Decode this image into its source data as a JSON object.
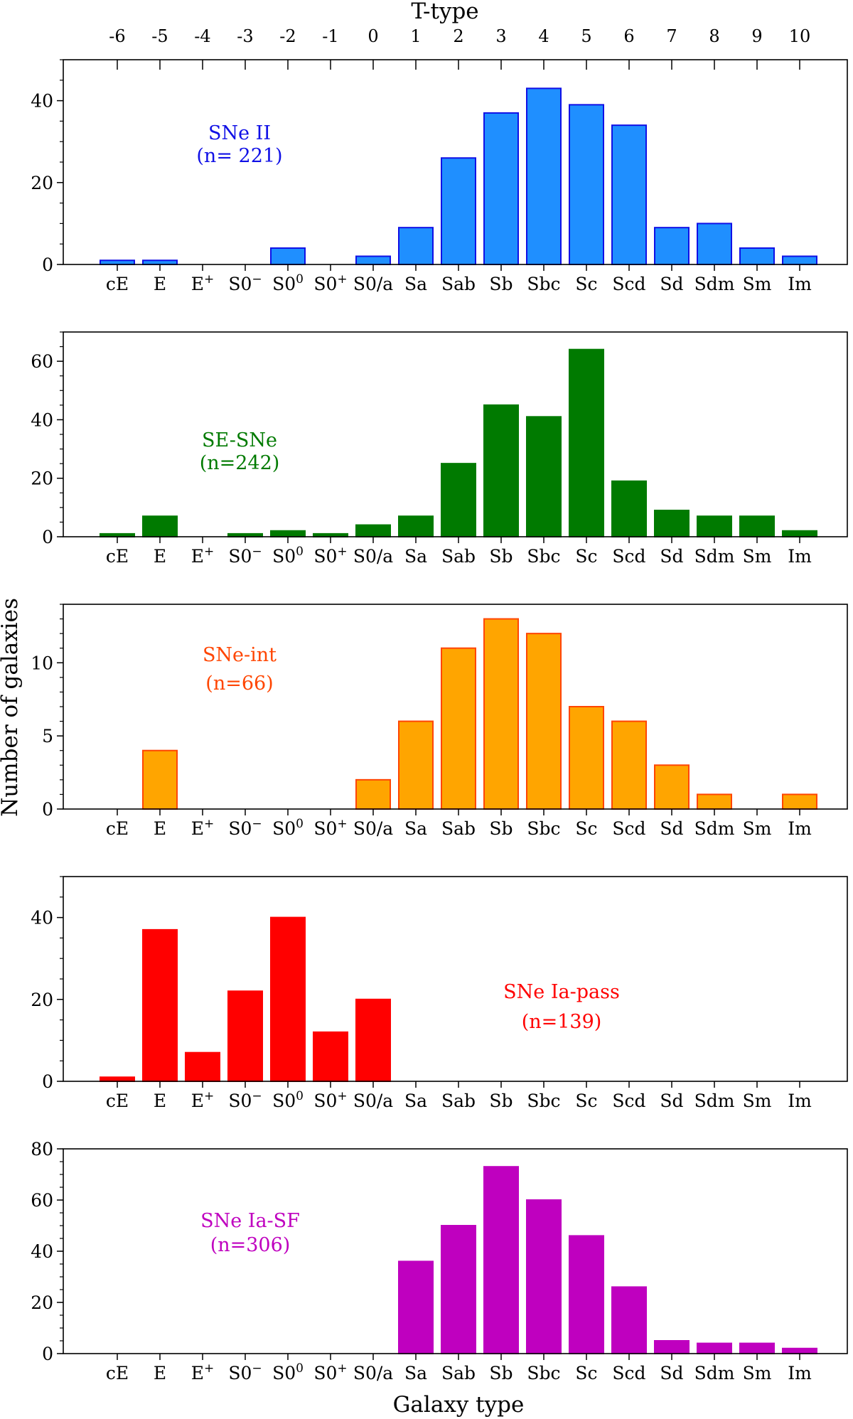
{
  "chart_data": {
    "type": "bar",
    "top_axis": {
      "label": "T-type",
      "ticks": [
        "-6",
        "-5",
        "-4",
        "-3",
        "-2",
        "-1",
        "0",
        "1",
        "2",
        "3",
        "4",
        "5",
        "6",
        "7",
        "8",
        "9",
        "10"
      ]
    },
    "categories": [
      {
        "name": "cE"
      },
      {
        "name": "E"
      },
      {
        "name": "E",
        "sup": "+"
      },
      {
        "name": "S0",
        "sup": "−"
      },
      {
        "name": "S0",
        "sup": "0"
      },
      {
        "name": "S0",
        "sup": "+"
      },
      {
        "name": "S0/a"
      },
      {
        "name": "Sa"
      },
      {
        "name": "Sab"
      },
      {
        "name": "Sb"
      },
      {
        "name": "Sbc"
      },
      {
        "name": "Sc"
      },
      {
        "name": "Scd"
      },
      {
        "name": "Sd"
      },
      {
        "name": "Sdm"
      },
      {
        "name": "Sm"
      },
      {
        "name": "Im"
      }
    ],
    "xlabel": "Galaxy type",
    "ylabel": "Number of galaxies",
    "panels": [
      {
        "label": "SNe II",
        "count_label": "(n= 221)",
        "color": "#1f8fff",
        "edge_color": "#1010e6",
        "ylim": [
          0,
          50
        ],
        "yticks": [
          0,
          20,
          40
        ],
        "minor_step": 5,
        "values": [
          1,
          1,
          0,
          0,
          4,
          0,
          2,
          9,
          26,
          37,
          43,
          39,
          34,
          9,
          10,
          4,
          2
        ]
      },
      {
        "label": "SE-SNe",
        "count_label": "(n=242)",
        "color": "#007a00",
        "edge_color": "#007a00",
        "ylim": [
          0,
          70
        ],
        "yticks": [
          0,
          20,
          40,
          60
        ],
        "minor_step": 5,
        "values": [
          1,
          7,
          0,
          1,
          2,
          1,
          4,
          7,
          25,
          45,
          41,
          64,
          19,
          9,
          7,
          7,
          2
        ]
      },
      {
        "label": "SNe-int",
        "count_label": "(n=66)",
        "color": "#ffa500",
        "edge_color": "#ff4500",
        "ylim": [
          0,
          14
        ],
        "yticks": [
          0,
          5,
          10
        ],
        "minor_step": 1,
        "values": [
          0,
          4,
          0,
          0,
          0,
          0,
          2,
          6,
          11,
          13,
          12,
          7,
          6,
          3,
          1,
          0,
          1
        ]
      },
      {
        "label": "SNe Ia-pass",
        "count_label": "(n=139)",
        "color": "#ff0000",
        "edge_color": "#ff0000",
        "ylim": [
          0,
          50
        ],
        "yticks": [
          0,
          20,
          40
        ],
        "minor_step": 5,
        "values": [
          1,
          37,
          7,
          22,
          40,
          12,
          20,
          0,
          0,
          0,
          0,
          0,
          0,
          0,
          0,
          0,
          0
        ]
      },
      {
        "label": "SNe Ia-SF",
        "count_label": "(n=306)",
        "color": "#bf00bf",
        "edge_color": "#bf00bf",
        "ylim": [
          0,
          80
        ],
        "yticks": [
          0,
          20,
          40,
          60,
          80
        ],
        "minor_step": 5,
        "values": [
          0,
          0,
          0,
          0,
          0,
          0,
          0,
          36,
          50,
          73,
          60,
          46,
          26,
          5,
          4,
          4,
          2
        ]
      }
    ]
  }
}
